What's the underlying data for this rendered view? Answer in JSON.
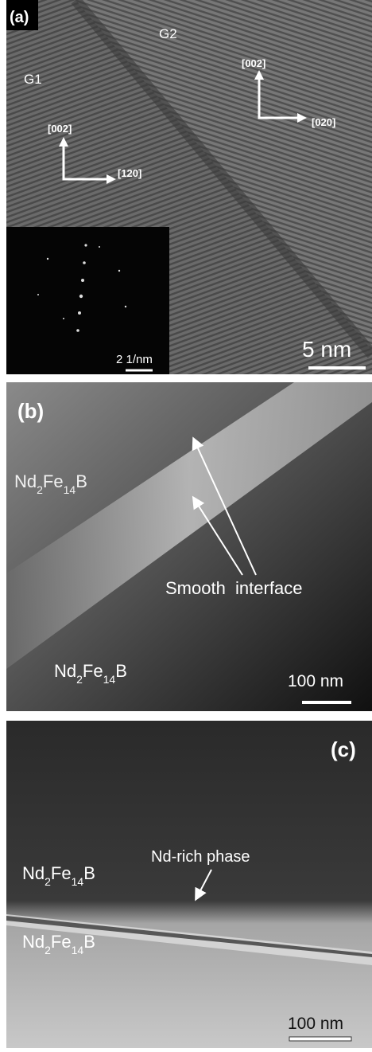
{
  "panels": [
    {
      "label": "(a)",
      "grains": [
        "G1",
        "G2"
      ],
      "directions": [
        "[002]",
        "[120]",
        "[002]",
        "[020]"
      ],
      "inset_scale": "2 1/nm",
      "scale": "5 nm"
    },
    {
      "label": "(b)",
      "phases": [
        "Nd2Fe14B",
        "Nd2Fe14B"
      ],
      "annotation": "Smooth  interface",
      "scale": "100 nm"
    },
    {
      "label": "(c)",
      "phases": [
        "Nd2Fe14B",
        "Nd2Fe14B"
      ],
      "annotation": "Nd-rich phase",
      "scale": "100 nm"
    }
  ]
}
